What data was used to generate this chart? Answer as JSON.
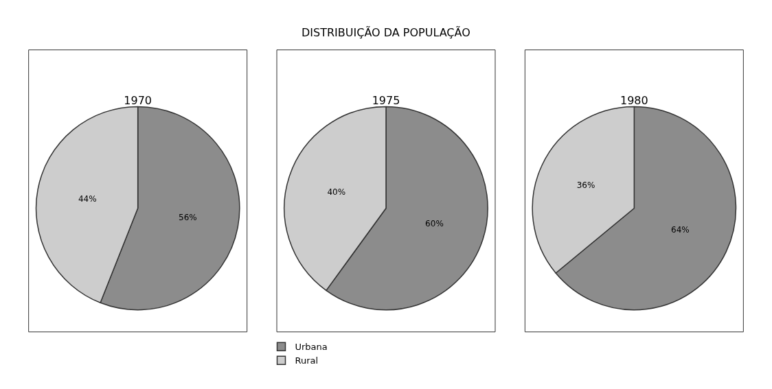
{
  "chart_data": [
    {
      "type": "pie",
      "title": "1970",
      "annotations": [
        "DISTRIBUIÇÃO DA POPULAÇÃO"
      ],
      "categories": [
        "Urbana",
        "Rural"
      ],
      "values": [
        56,
        44
      ],
      "value_labels": [
        "56%",
        "44%"
      ],
      "colors": [
        "#8c8c8c",
        "#cdcdcd"
      ],
      "legend": "bottom"
    },
    {
      "type": "pie",
      "title": "1975",
      "categories": [
        null,
        null
      ],
      "values": [
        60,
        40
      ],
      "value_labels": [
        "60%",
        "40%"
      ],
      "colors": [
        "#8c8c8c",
        "#cdcdcd"
      ]
    },
    {
      "type": "pie",
      "title": "1980",
      "categories": [
        null,
        null
      ],
      "values": [
        64,
        36
      ],
      "value_labels": [
        "64%",
        "36%"
      ],
      "colors": [
        "#8c8c8c",
        "#cdcdcd"
      ]
    }
  ]
}
